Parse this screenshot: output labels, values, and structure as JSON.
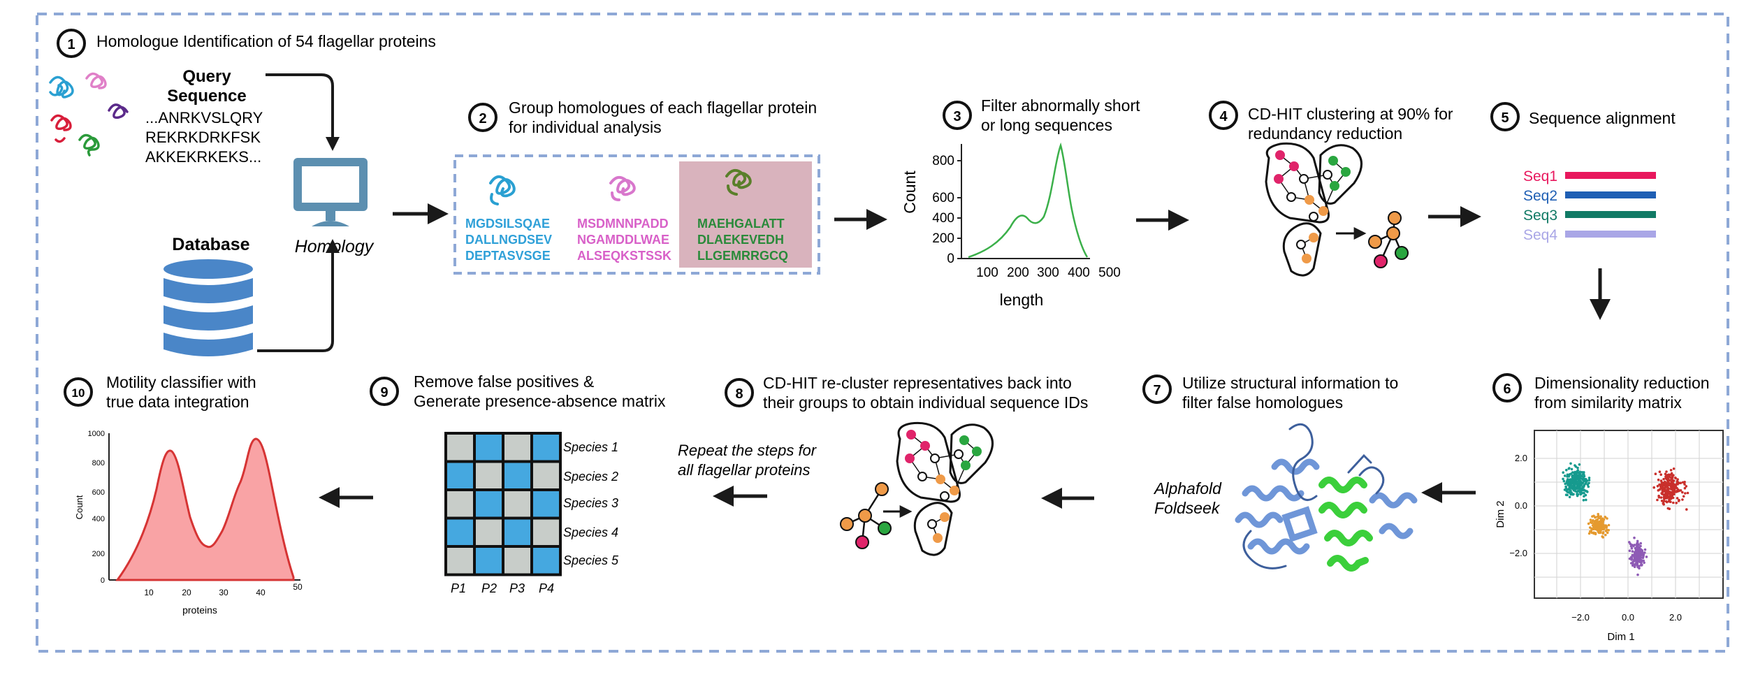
{
  "steps": [
    {
      "num": "1",
      "title": "Homologue Identification of 54 flagellar proteins"
    },
    {
      "num": "2",
      "title_line1": "Group homologues of each flagellar protein",
      "title_line2": "for individual analysis"
    },
    {
      "num": "3",
      "title_line1": "Filter abnormally short",
      "title_line2": "or long sequences"
    },
    {
      "num": "4",
      "title_line1": "CD-HIT clustering at 90% for",
      "title_line2": "redundancy reduction"
    },
    {
      "num": "5",
      "title": "Sequence alignment"
    },
    {
      "num": "6",
      "title_line1": "Dimensionality reduction",
      "title_line2": "from similarity matrix"
    },
    {
      "num": "7",
      "title_line1": "Utilize structural information to",
      "title_line2": "filter false homologues"
    },
    {
      "num": "8",
      "title_line1": "CD-HIT re-cluster representatives back into",
      "title_line2": "their groups to obtain individual sequence IDs"
    },
    {
      "num": "9",
      "title_line1": "Remove false positives &",
      "title_line2": "Generate presence-absence matrix"
    },
    {
      "num": "10",
      "title_line1": "Motility classifier with",
      "title_line2": "true data integration"
    }
  ],
  "step1": {
    "query_label_1": "Query",
    "query_label_2": "Sequence",
    "query_seq": [
      "...ANRKVSLQRY",
      "REKRKDRKFSK",
      "AKKEKRKEKS..."
    ],
    "database_label": "Database",
    "homology_label": "Homology"
  },
  "step2": {
    "groups": [
      {
        "color": "#2fa0d8",
        "lines": [
          "MGDSILSQAE",
          "DALLNGDSEV",
          "DEPTASVSGE"
        ]
      },
      {
        "color": "#d860c8",
        "lines": [
          "MSDMNNPADD",
          "NGAMDDLWAE",
          "ALSEQKSTSSK"
        ]
      },
      {
        "color": "#2a8a3a",
        "lines": [
          "MAEHGALATT",
          "DLAEKEVEDH",
          "LLGEMRRGCQ"
        ]
      }
    ],
    "highlight_color": "#d9b3bd"
  },
  "step3_chart": {
    "ylabel": "Count",
    "xlabel": "length",
    "yticks": [
      "0",
      "200",
      "400",
      "600",
      "800"
    ],
    "xticks": [
      "100",
      "200",
      "300",
      "400",
      "500"
    ]
  },
  "step5": {
    "seqs": [
      {
        "label": "Seq1",
        "color": "#e8175d"
      },
      {
        "label": "Seq2",
        "color": "#1f5fb4"
      },
      {
        "label": "Seq3",
        "color": "#117a65"
      },
      {
        "label": "Seq4",
        "color": "#a9a6e6"
      }
    ]
  },
  "step6_chart": {
    "xlabel": "Dim 1",
    "ylabel": "Dim 2",
    "xticks": [
      "−2.0",
      "0.0",
      "2.0"
    ],
    "yticks": [
      "2.0",
      "0.0",
      "−2.0"
    ],
    "clusters": [
      {
        "name": "teal",
        "color": "#169a8e"
      },
      {
        "name": "red",
        "color": "#c9302c"
      },
      {
        "name": "orange",
        "color": "#e59a2f"
      },
      {
        "name": "purple",
        "color": "#8e5bb5"
      }
    ]
  },
  "step7": {
    "tools": [
      "Alphafold",
      "Foldseek"
    ]
  },
  "step8": {
    "repeat_line1": "Repeat the steps for",
    "repeat_line2": "all flagellar proteins"
  },
  "step9_matrix": {
    "rows": [
      "Species 1",
      "Species 2",
      "Species 3",
      "Species 4",
      "Species 5"
    ],
    "cols": [
      "P1",
      "P2",
      "P3",
      "P4"
    ],
    "presence": [
      [
        0,
        1,
        0,
        1
      ],
      [
        1,
        0,
        1,
        0
      ],
      [
        0,
        1,
        0,
        1
      ],
      [
        1,
        0,
        1,
        0
      ],
      [
        0,
        1,
        0,
        1
      ]
    ],
    "present_color": "#45a8e0",
    "absent_color": "#c8cdc9"
  },
  "step10_chart": {
    "ylabel": "Count",
    "xlabel": "proteins",
    "yticks": [
      "0",
      "200",
      "400",
      "600",
      "800",
      "1000"
    ],
    "xticks": [
      "10",
      "20",
      "30",
      "40",
      "50"
    ]
  }
}
